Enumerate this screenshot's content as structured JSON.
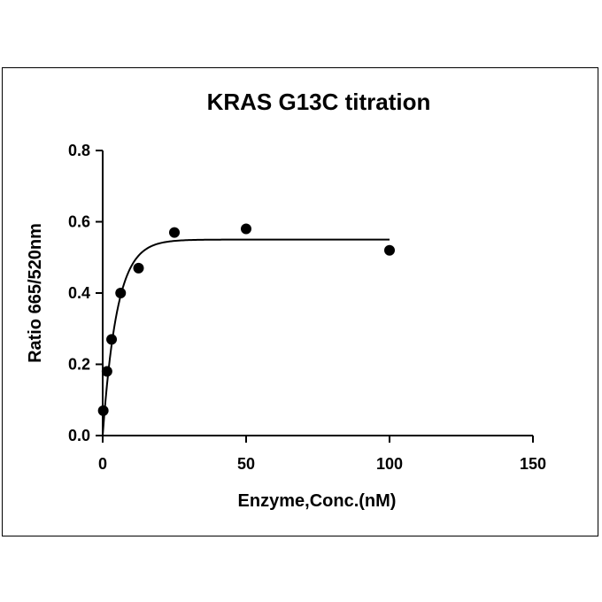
{
  "chart_data": {
    "type": "scatter",
    "title": "KRAS G13C titration",
    "xlabel": "Enzyme,Conc.(nM)",
    "ylabel": "Ratio 665/520nm",
    "xlim": [
      0,
      150
    ],
    "ylim": [
      0,
      0.8
    ],
    "x_ticks": [
      "0",
      "50",
      "100",
      "150"
    ],
    "y_ticks": [
      "0.0",
      "0.2",
      "0.4",
      "0.6",
      "0.8"
    ],
    "grid": false,
    "series": [
      {
        "type": "scatter",
        "x": [
          0.2,
          1.5,
          3.1,
          6.25,
          12.5,
          25,
          50,
          100
        ],
        "y": [
          0.07,
          0.18,
          0.27,
          0.4,
          0.47,
          0.57,
          0.58,
          0.52
        ]
      },
      {
        "type": "fit-line",
        "model": "exponential-association",
        "y0": 0.0,
        "plateau": 0.55,
        "k": 0.2,
        "x_range": [
          0,
          100
        ]
      }
    ],
    "colors": {
      "marker": "#000000",
      "line": "#000000",
      "axis": "#000000"
    }
  }
}
